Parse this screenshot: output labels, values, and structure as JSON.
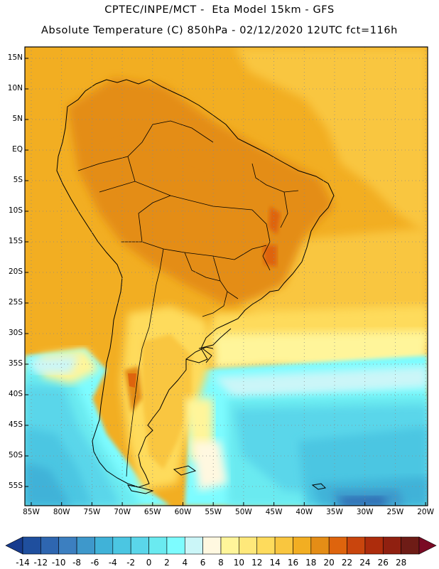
{
  "title_line1": "CPTEC/INPE/MCT -  Eta Model 15km - GFS",
  "title_line2": "Absolute Temperature (C) 850hPa - 02/12/2020 12UTC fct=116h",
  "map": {
    "lat_labels": [
      "15N",
      "10N",
      "5N",
      "EQ",
      "5S",
      "10S",
      "15S",
      "20S",
      "25S",
      "30S",
      "35S",
      "40S",
      "45S",
      "50S",
      "55S"
    ],
    "lon_labels": [
      "85W",
      "80W",
      "75W",
      "70W",
      "65W",
      "60W",
      "55W",
      "50W",
      "45W",
      "40W",
      "35W",
      "30W",
      "25W",
      "20W"
    ],
    "grid": true,
    "grid_style": "dotted"
  },
  "colorbar": {
    "labels": [
      "-14",
      "-12",
      "-10",
      "-8",
      "-6",
      "-4",
      "-2",
      "0",
      "2",
      "4",
      "6",
      "8",
      "10",
      "12",
      "14",
      "16",
      "18",
      "20",
      "22",
      "24",
      "26",
      "28"
    ],
    "colors": [
      "#173b8e",
      "#1f4f9e",
      "#2e66b0",
      "#3c7fc0",
      "#3e98cb",
      "#40b2d8",
      "#4bc6e2",
      "#5ad6ea",
      "#6aeaf0",
      "#7dfcff",
      "#cbf6f8",
      "#fff8e0",
      "#fff59a",
      "#fee87a",
      "#fedb5c",
      "#f9c63f",
      "#f2ae22",
      "#e48d16",
      "#de640d",
      "#c9450d",
      "#ad2c0c",
      "#902010",
      "#6e1c16",
      "#7a0a24"
    ],
    "unit": "C"
  }
}
